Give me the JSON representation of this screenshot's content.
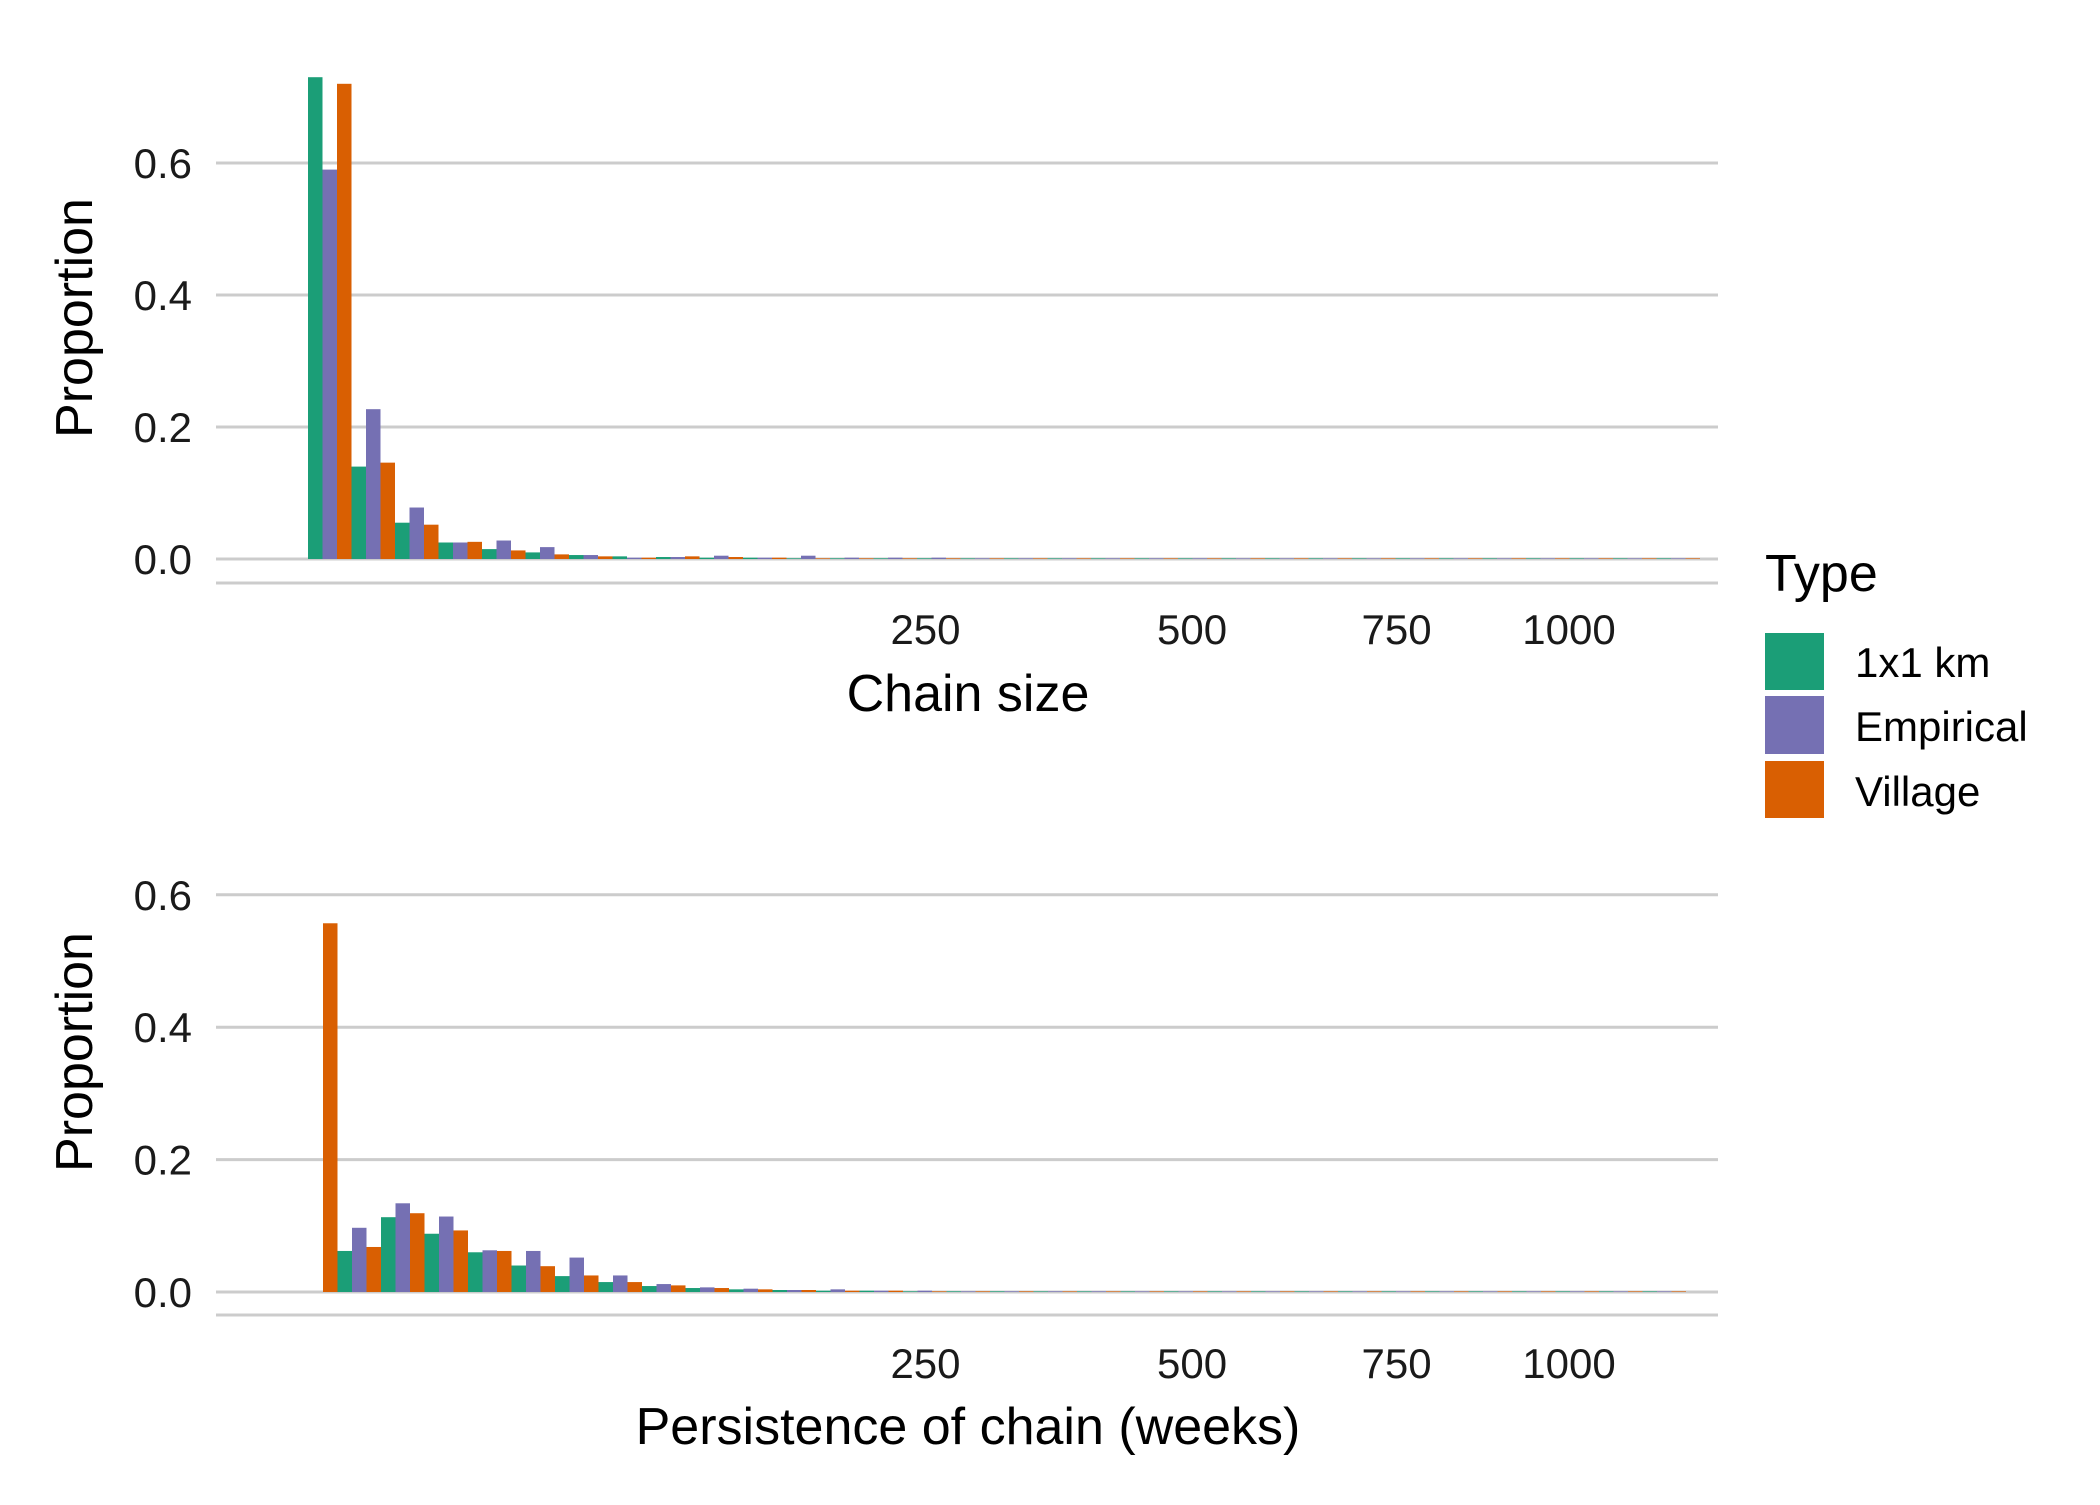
{
  "colors": {
    "gridline": "#cccccc",
    "axis_line": "#cccccc"
  },
  "legend": {
    "title": "Type",
    "placement": "right",
    "entries": [
      {
        "label": "1x1 km",
        "color": "#1b9e77"
      },
      {
        "label": "Empirical",
        "color": "#7570b3"
      },
      {
        "label": "Village",
        "color": "#d95f02"
      }
    ]
  },
  "chart_data": [
    {
      "type": "bar",
      "panel": "top",
      "xlabel": "Chain size",
      "ylabel": "Proportion",
      "x_scale": "sqrt",
      "xlim": [
        0,
        1060
      ],
      "ylim": [
        0,
        0.73
      ],
      "x_ticks": [
        {
          "value": 250,
          "label": "250"
        },
        {
          "value": 500,
          "label": "500"
        },
        {
          "value": 750,
          "label": "750"
        },
        {
          "value": 1000,
          "label": "1000"
        }
      ],
      "y_ticks": [
        {
          "value": 0,
          "label": "0.0"
        },
        {
          "value": 0.2,
          "label": "0.2"
        },
        {
          "value": 0.4,
          "label": "0.4"
        },
        {
          "value": 0.6,
          "label": "0.6"
        }
      ],
      "grid": true,
      "series": [
        {
          "name": "1x1 km",
          "color": "#1b9e77",
          "bins": [
            {
              "x": 1,
              "y": 0.73
            },
            {
              "x": 2,
              "y": 0.14
            },
            {
              "x": 4,
              "y": 0.055
            },
            {
              "x": 6,
              "y": 0.025
            },
            {
              "x": 9,
              "y": 0.015
            },
            {
              "x": 12,
              "y": 0.01
            },
            {
              "x": 16,
              "y": 0.006
            },
            {
              "x": 20,
              "y": 0.004
            },
            {
              "x": 25,
              "y": 0.003
            },
            {
              "x": 30,
              "y": 0.002
            },
            {
              "x": 36,
              "y": 0.002
            },
            {
              "x": 42,
              "y": 0.001
            },
            {
              "x": 49,
              "y": 0.001
            },
            {
              "x": 56,
              "y": 0.001
            },
            {
              "x": 64,
              "y": 0.001
            },
            {
              "x": 72,
              "y": 0.0005
            },
            {
              "x": 81,
              "y": 0.0005
            },
            {
              "x": 90,
              "y": 0.0005
            },
            {
              "x": 100,
              "y": 0.0005
            },
            {
              "x": 110,
              "y": 0.0005
            },
            {
              "x": 121,
              "y": 0.0005
            },
            {
              "x": 132,
              "y": 0.0005
            },
            {
              "x": 144,
              "y": 0.0005
            },
            {
              "x": 156,
              "y": 0.0003
            },
            {
              "x": 169,
              "y": 0.0003
            },
            {
              "x": 182,
              "y": 0.0003
            },
            {
              "x": 196,
              "y": 0.0003
            },
            {
              "x": 210,
              "y": 0.0003
            },
            {
              "x": 225,
              "y": 0.0002
            },
            {
              "x": 240,
              "y": 0.0002
            },
            {
              "x": 256,
              "y": 0.0002
            },
            {
              "x": 272,
              "y": 0.0002
            }
          ]
        },
        {
          "name": "Empirical",
          "color": "#7570b3",
          "bins": [
            {
              "x": 1,
              "y": 0.59
            },
            {
              "x": 2,
              "y": 0.227
            },
            {
              "x": 4,
              "y": 0.078
            },
            {
              "x": 6,
              "y": 0.025
            },
            {
              "x": 9,
              "y": 0.028
            },
            {
              "x": 12,
              "y": 0.018
            },
            {
              "x": 16,
              "y": 0.006
            },
            {
              "x": 20,
              "y": 0.002
            },
            {
              "x": 25,
              "y": 0.003
            },
            {
              "x": 30,
              "y": 0.005
            },
            {
              "x": 36,
              "y": 0.002
            },
            {
              "x": 42,
              "y": 0.005
            },
            {
              "x": 49,
              "y": 0.002
            },
            {
              "x": 56,
              "y": 0.002
            },
            {
              "x": 64,
              "y": 0.002
            },
            {
              "x": 72,
              "y": 0.001
            },
            {
              "x": 81,
              "y": 0.001
            },
            {
              "x": 90,
              "y": 0.001
            },
            {
              "x": 100,
              "y": 0.001
            },
            {
              "x": 110,
              "y": 0.001
            },
            {
              "x": 121,
              "y": 0.001
            },
            {
              "x": 132,
              "y": 0.0005
            },
            {
              "x": 144,
              "y": 0.0005
            },
            {
              "x": 156,
              "y": 0.0005
            },
            {
              "x": 169,
              "y": 0.0005
            },
            {
              "x": 182,
              "y": 0.0005
            },
            {
              "x": 196,
              "y": 0.0003
            },
            {
              "x": 210,
              "y": 0.0003
            },
            {
              "x": 225,
              "y": 0.0003
            },
            {
              "x": 240,
              "y": 0.0003
            },
            {
              "x": 256,
              "y": 0.0003
            },
            {
              "x": 272,
              "y": 0.0002
            }
          ]
        },
        {
          "name": "Village",
          "color": "#d95f02",
          "bins": [
            {
              "x": 1,
              "y": 0.72
            },
            {
              "x": 2,
              "y": 0.146
            },
            {
              "x": 4,
              "y": 0.052
            },
            {
              "x": 6,
              "y": 0.026
            },
            {
              "x": 9,
              "y": 0.013
            },
            {
              "x": 12,
              "y": 0.007
            },
            {
              "x": 16,
              "y": 0.004
            },
            {
              "x": 20,
              "y": 0.002
            },
            {
              "x": 25,
              "y": 0.004
            },
            {
              "x": 30,
              "y": 0.003
            },
            {
              "x": 36,
              "y": 0.002
            },
            {
              "x": 42,
              "y": 0.001
            },
            {
              "x": 49,
              "y": 0.001
            },
            {
              "x": 56,
              "y": 0.001
            },
            {
              "x": 64,
              "y": 0.001
            },
            {
              "x": 72,
              "y": 0.0005
            },
            {
              "x": 81,
              "y": 0.0005
            },
            {
              "x": 90,
              "y": 0.0005
            },
            {
              "x": 100,
              "y": 0.0005
            },
            {
              "x": 110,
              "y": 0.0005
            },
            {
              "x": 121,
              "y": 0.0005
            },
            {
              "x": 132,
              "y": 0.0003
            },
            {
              "x": 144,
              "y": 0.0003
            },
            {
              "x": 156,
              "y": 0.0003
            },
            {
              "x": 169,
              "y": 0.0003
            },
            {
              "x": 182,
              "y": 0.0003
            },
            {
              "x": 196,
              "y": 0.0002
            },
            {
              "x": 210,
              "y": 0.0002
            },
            {
              "x": 225,
              "y": 0.0002
            },
            {
              "x": 240,
              "y": 0.0002
            },
            {
              "x": 256,
              "y": 0.0002
            },
            {
              "x": 272,
              "y": 0.0002
            }
          ]
        }
      ]
    },
    {
      "type": "bar",
      "panel": "bottom",
      "xlabel": "Persistence of chain (weeks)",
      "ylabel": "Proportion",
      "x_scale": "sqrt",
      "xlim": [
        0,
        1060
      ],
      "ylim": [
        0,
        0.56
      ],
      "x_ticks": [
        {
          "value": 250,
          "label": "250"
        },
        {
          "value": 500,
          "label": "500"
        },
        {
          "value": 750,
          "label": "750"
        },
        {
          "value": 1000,
          "label": "1000"
        }
      ],
      "y_ticks": [
        {
          "value": 0,
          "label": "0.0"
        },
        {
          "value": 0.2,
          "label": "0.2"
        },
        {
          "value": 0.4,
          "label": "0.4"
        },
        {
          "value": 0.6,
          "label": "0.6"
        }
      ],
      "grid": true,
      "series": [
        {
          "name": "1x1 km",
          "color": "#1b9e77",
          "bins": [
            {
              "x": 0.25,
              "y": 0
            },
            {
              "x": 1,
              "y": 0.062
            },
            {
              "x": 2.25,
              "y": 0.113
            },
            {
              "x": 4,
              "y": 0.088
            },
            {
              "x": 6.25,
              "y": 0.06
            },
            {
              "x": 9,
              "y": 0.04
            },
            {
              "x": 12.25,
              "y": 0.024
            },
            {
              "x": 16,
              "y": 0.015
            },
            {
              "x": 20.25,
              "y": 0.009
            },
            {
              "x": 25,
              "y": 0.006
            },
            {
              "x": 30.25,
              "y": 0.004
            },
            {
              "x": 36,
              "y": 0.003
            },
            {
              "x": 42.25,
              "y": 0.002
            },
            {
              "x": 49,
              "y": 0.002
            },
            {
              "x": 56.25,
              "y": 0.001
            },
            {
              "x": 64,
              "y": 0.001
            },
            {
              "x": 72.25,
              "y": 0.001
            },
            {
              "x": 81,
              "y": 0.0005
            },
            {
              "x": 90.25,
              "y": 0.0005
            },
            {
              "x": 100,
              "y": 0.0005
            },
            {
              "x": 110.25,
              "y": 0.0005
            },
            {
              "x": 121,
              "y": 0.0003
            },
            {
              "x": 132.25,
              "y": 0.0003
            },
            {
              "x": 144,
              "y": 0.0003
            },
            {
              "x": 156.25,
              "y": 0.0003
            },
            {
              "x": 169,
              "y": 0.0002
            },
            {
              "x": 182.25,
              "y": 0.0002
            },
            {
              "x": 196,
              "y": 0.0002
            },
            {
              "x": 210.25,
              "y": 0.0002
            },
            {
              "x": 225,
              "y": 0.0002
            },
            {
              "x": 240.25,
              "y": 0.0001
            },
            {
              "x": 256,
              "y": 0.0001
            }
          ]
        },
        {
          "name": "Empirical",
          "color": "#7570b3",
          "bins": [
            {
              "x": 0.25,
              "y": 0
            },
            {
              "x": 1,
              "y": 0.097
            },
            {
              "x": 2.25,
              "y": 0.134
            },
            {
              "x": 4,
              "y": 0.114
            },
            {
              "x": 6.25,
              "y": 0.063
            },
            {
              "x": 9,
              "y": 0.062
            },
            {
              "x": 12.25,
              "y": 0.052
            },
            {
              "x": 16,
              "y": 0.025
            },
            {
              "x": 20.25,
              "y": 0.012
            },
            {
              "x": 25,
              "y": 0.007
            },
            {
              "x": 30.25,
              "y": 0.005
            },
            {
              "x": 36,
              "y": 0.003
            },
            {
              "x": 42.25,
              "y": 0.004
            },
            {
              "x": 49,
              "y": 0.002
            },
            {
              "x": 56.25,
              "y": 0.002
            },
            {
              "x": 64,
              "y": 0.001
            },
            {
              "x": 72.25,
              "y": 0.001
            },
            {
              "x": 81,
              "y": 0.001
            },
            {
              "x": 90.25,
              "y": 0.001
            },
            {
              "x": 100,
              "y": 0.0005
            },
            {
              "x": 110.25,
              "y": 0.0005
            },
            {
              "x": 121,
              "y": 0.0005
            },
            {
              "x": 132.25,
              "y": 0.0005
            },
            {
              "x": 144,
              "y": 0.0003
            },
            {
              "x": 156.25,
              "y": 0.0003
            },
            {
              "x": 169,
              "y": 0.0003
            },
            {
              "x": 182.25,
              "y": 0.0003
            },
            {
              "x": 196,
              "y": 0.0002
            },
            {
              "x": 210.25,
              "y": 0.0002
            },
            {
              "x": 225,
              "y": 0.0002
            },
            {
              "x": 240.25,
              "y": 0.0002
            },
            {
              "x": 256,
              "y": 0.0001
            }
          ]
        },
        {
          "name": "Village",
          "color": "#d95f02",
          "bins": [
            {
              "x": 0.25,
              "y": 0.557
            },
            {
              "x": 1,
              "y": 0.068
            },
            {
              "x": 2.25,
              "y": 0.119
            },
            {
              "x": 4,
              "y": 0.093
            },
            {
              "x": 6.25,
              "y": 0.062
            },
            {
              "x": 9,
              "y": 0.039
            },
            {
              "x": 12.25,
              "y": 0.025
            },
            {
              "x": 16,
              "y": 0.015
            },
            {
              "x": 20.25,
              "y": 0.01
            },
            {
              "x": 25,
              "y": 0.006
            },
            {
              "x": 30.25,
              "y": 0.004
            },
            {
              "x": 36,
              "y": 0.003
            },
            {
              "x": 42.25,
              "y": 0.002
            },
            {
              "x": 49,
              "y": 0.002
            },
            {
              "x": 56.25,
              "y": 0.001
            },
            {
              "x": 64,
              "y": 0.001
            },
            {
              "x": 72.25,
              "y": 0.001
            },
            {
              "x": 81,
              "y": 0.0005
            },
            {
              "x": 90.25,
              "y": 0.0005
            },
            {
              "x": 100,
              "y": 0.0005
            },
            {
              "x": 110.25,
              "y": 0.0005
            },
            {
              "x": 121,
              "y": 0.0003
            },
            {
              "x": 132.25,
              "y": 0.0003
            },
            {
              "x": 144,
              "y": 0.0003
            },
            {
              "x": 156.25,
              "y": 0.0003
            },
            {
              "x": 169,
              "y": 0.0002
            },
            {
              "x": 182.25,
              "y": 0.0002
            },
            {
              "x": 196,
              "y": 0.0002
            },
            {
              "x": 210.25,
              "y": 0.0002
            },
            {
              "x": 225,
              "y": 0.0002
            },
            {
              "x": 240.25,
              "y": 0.0001
            },
            {
              "x": 256,
              "y": 0.0001
            }
          ]
        }
      ]
    }
  ]
}
